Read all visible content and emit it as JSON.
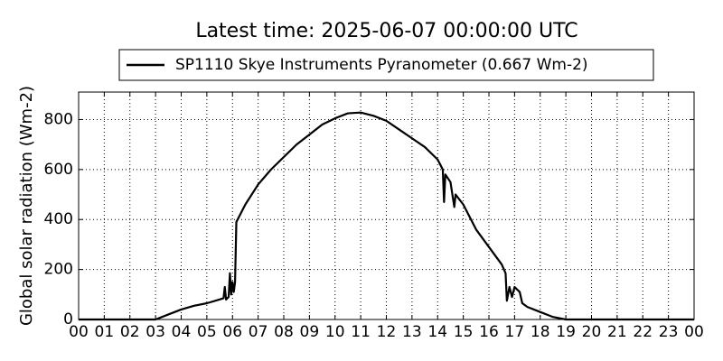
{
  "chart_data": {
    "type": "line",
    "title": "Latest time: 2025-06-07 00:00:00 UTC",
    "y_label": "Global solar radiation (Wm-2)",
    "x": [
      0,
      3.0,
      3.5,
      4.0,
      4.5,
      5.0,
      5.5,
      5.65,
      5.7,
      5.75,
      5.85,
      5.9,
      5.95,
      6.0,
      6.05,
      6.1,
      6.15,
      6.5,
      7.0,
      7.5,
      8.0,
      8.5,
      9.0,
      9.5,
      10.0,
      10.5,
      11.0,
      11.5,
      12.0,
      12.5,
      13.0,
      13.5,
      14.0,
      14.1,
      14.2,
      14.25,
      14.3,
      14.5,
      14.65,
      14.7,
      15.0,
      15.5,
      16.0,
      16.5,
      16.65,
      16.7,
      16.8,
      16.9,
      17.0,
      17.2,
      17.3,
      17.5,
      18.0,
      18.5,
      19.0,
      24
    ],
    "series": [
      {
        "name": "SP1110 Skye Instruments Pyranometer (0.667 Wm-2)",
        "color": "#000000",
        "values": [
          0,
          0,
          20,
          40,
          55,
          65,
          80,
          85,
          130,
          80,
          90,
          185,
          100,
          150,
          110,
          150,
          390,
          460,
          540,
          600,
          650,
          700,
          740,
          780,
          805,
          825,
          828,
          815,
          795,
          760,
          725,
          690,
          640,
          620,
          600,
          470,
          580,
          550,
          450,
          500,
          460,
          360,
          290,
          220,
          185,
          75,
          130,
          90,
          130,
          110,
          65,
          50,
          30,
          10,
          0,
          0
        ]
      }
    ],
    "xlim": [
      0,
      24
    ],
    "xticks": [
      {
        "value": 0,
        "label": "00"
      },
      {
        "value": 1,
        "label": "01"
      },
      {
        "value": 2,
        "label": "02"
      },
      {
        "value": 3,
        "label": "03"
      },
      {
        "value": 4,
        "label": "04"
      },
      {
        "value": 5,
        "label": "05"
      },
      {
        "value": 6,
        "label": "06"
      },
      {
        "value": 7,
        "label": "07"
      },
      {
        "value": 8,
        "label": "08"
      },
      {
        "value": 9,
        "label": "09"
      },
      10,
      11,
      12,
      13,
      14,
      15,
      16,
      17,
      18,
      19,
      20,
      21,
      22,
      23,
      {
        "value": 24,
        "label": "00"
      }
    ],
    "ylim": [
      0,
      910
    ],
    "yticks": [
      0,
      200,
      400,
      600,
      800
    ],
    "grid": true,
    "legend": "top"
  }
}
